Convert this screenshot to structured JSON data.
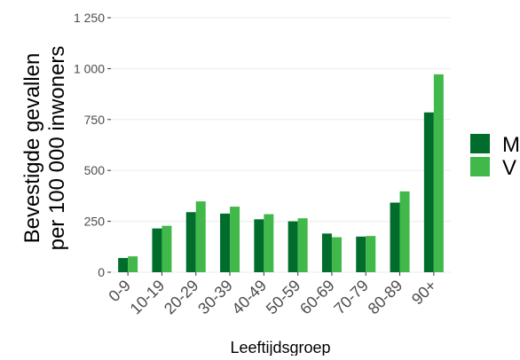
{
  "chart_data": {
    "type": "bar",
    "categories": [
      "0-9",
      "10-19",
      "20-29",
      "30-39",
      "40-49",
      "50-59",
      "60-69",
      "70-79",
      "80-89",
      "90+"
    ],
    "series": [
      {
        "name": "M",
        "color": "#006d2c",
        "values": [
          70,
          215,
          295,
          288,
          260,
          250,
          190,
          175,
          342,
          785
        ]
      },
      {
        "name": "V",
        "color": "#41b84a",
        "values": [
          78,
          228,
          348,
          322,
          285,
          265,
          172,
          178,
          397,
          972
        ]
      }
    ],
    "ylim": [
      0,
      1250
    ],
    "yticks": [
      0,
      250,
      500,
      750,
      1000,
      1250
    ],
    "ytick_labels": [
      "0",
      "250",
      "500",
      "750",
      "1 000",
      "1 250"
    ],
    "ylabel_line1": "Bevestigde gevallen",
    "ylabel_line2": "per 100 000 inwoners",
    "xlabel": "Leeftijdsgroep",
    "grid": true,
    "legend_position": "right"
  }
}
